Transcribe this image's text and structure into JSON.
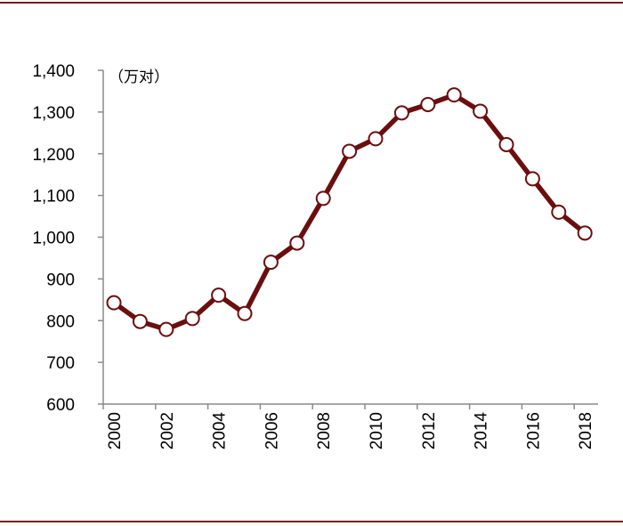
{
  "chart_data": {
    "type": "line",
    "title": "",
    "xlabel": "",
    "ylabel": "",
    "unit_label": "（万对）",
    "x": [
      2000,
      2001,
      2002,
      2003,
      2004,
      2005,
      2006,
      2007,
      2008,
      2009,
      2010,
      2011,
      2012,
      2013,
      2014,
      2015,
      2016,
      2017,
      2018
    ],
    "x_tick_labels": [
      "2000",
      "2002",
      "2004",
      "2006",
      "2008",
      "2010",
      "2012",
      "2014",
      "2016",
      "2018"
    ],
    "y_tick_labels": [
      "1,400",
      "1,300",
      "1,200",
      "1,100",
      "1,000",
      "900",
      "800",
      "700",
      "600"
    ],
    "y_ticks": [
      1400,
      1300,
      1200,
      1100,
      1000,
      900,
      800,
      700,
      600
    ],
    "ylim": [
      600,
      1400
    ],
    "series": [
      {
        "values": [
          843,
          798,
          779,
          805,
          861,
          817,
          940,
          986,
          1093,
          1206,
          1236,
          1298,
          1318,
          1341,
          1302,
          1222,
          1140,
          1060,
          1010
        ]
      }
    ],
    "grid": false,
    "colors": {
      "line": "#6b0e0e",
      "marker_fill": "#ffffff",
      "axis": "#8a8a8a",
      "rule": "#7b1c1c"
    }
  }
}
